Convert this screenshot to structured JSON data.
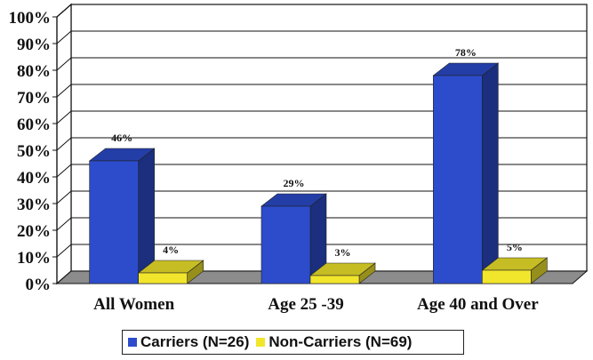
{
  "chart_data": {
    "type": "bar",
    "categories": [
      "All Women",
      "Age 25 -39",
      "Age 40 and Over"
    ],
    "series": [
      {
        "name": "Carriers (N=26)",
        "values": [
          46,
          29,
          78
        ],
        "labels": [
          "46%",
          "29%",
          "78%"
        ],
        "color": "#2c4ccc"
      },
      {
        "name": "Non-Carriers (N=69)",
        "values": [
          4,
          3,
          5
        ],
        "labels": [
          "4%",
          "3%",
          "5%"
        ],
        "color": "#f2e62c"
      }
    ],
    "yticks": [
      "0%",
      "10%",
      "20%",
      "30%",
      "40%",
      "50%",
      "60%",
      "70%",
      "80%",
      "90%",
      "100%"
    ],
    "ylim": [
      0,
      100
    ],
    "grid": true,
    "legend_position": "bottom",
    "floor_color": "#8c8c8c"
  }
}
